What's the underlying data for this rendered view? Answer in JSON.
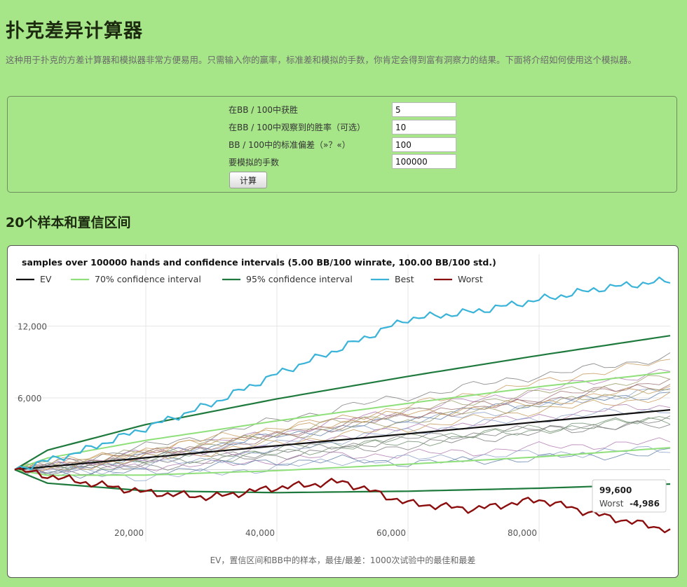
{
  "page": {
    "title": "扑克差异计算器",
    "intro": "这种用于扑克的方差计算器和模拟器非常方便易用。只需输入你的赢率，标准差和模拟的手数，你肯定会得到富有洞察力的结果。下面将介绍如何使用这个模拟器。"
  },
  "form": {
    "fields": [
      {
        "label": "在BB / 100中获胜",
        "value": "5"
      },
      {
        "label": "在BB / 100中观察到的胜率（可选）",
        "value": "10"
      },
      {
        "label": "BB / 100中的标准偏差（»？«）",
        "value": "100"
      },
      {
        "label": "要模拟的手数",
        "value": "100000"
      }
    ],
    "button_label": "计算"
  },
  "section_title": "20个样本和置信区间",
  "colors": {
    "background": "#a6e689",
    "ev": "#111111",
    "ci70": "#8fe07a",
    "ci95": "#1e7a3c",
    "best": "#3ab3d9",
    "worst": "#8b0d0d"
  },
  "chart_data": {
    "type": "line",
    "title": "samples over 100000 hands and confidence intervals (5.00 BB/100 winrate, 100.00 BB/100 std.)",
    "xlabel": "EV，置信区间和BB中的样本，最佳/最差：1000次试验中的最佳和最差",
    "ylabel": "",
    "xlim": [
      0,
      100000
    ],
    "ylim": [
      -6000,
      18000
    ],
    "xticks": [
      "20,000",
      "40,000",
      "60,000",
      "80,000"
    ],
    "xtick_values": [
      20000,
      40000,
      60000,
      80000
    ],
    "yticks": [
      "6,000",
      "12,000"
    ],
    "ytick_values": [
      6000,
      12000
    ],
    "grid": true,
    "legend_position": "top-left",
    "legend": [
      "EV",
      "70% confidence interval",
      "95% confidence interval",
      "Best",
      "Worst"
    ],
    "tooltip": {
      "x_label": "99,600",
      "series": "Worst",
      "value": "-4,986"
    },
    "series": [
      {
        "name": "EV",
        "x": [
          0,
          20000,
          40000,
          60000,
          80000,
          100000
        ],
        "values": [
          0,
          1000,
          2000,
          3000,
          4000,
          5000
        ]
      },
      {
        "name": "70% confidence interval",
        "role": "upper",
        "x": [
          0,
          5000,
          20000,
          40000,
          60000,
          80000,
          100000
        ],
        "values": [
          0,
          970,
          2450,
          4080,
          5540,
          6930,
          8160
        ]
      },
      {
        "name": "70% confidence interval",
        "role": "lower",
        "x": [
          0,
          5000,
          20000,
          40000,
          60000,
          80000,
          100000
        ],
        "values": [
          0,
          -470,
          -450,
          -80,
          460,
          1070,
          1840
        ]
      },
      {
        "name": "95% confidence interval",
        "role": "upper",
        "x": [
          0,
          5000,
          20000,
          40000,
          60000,
          80000,
          100000
        ],
        "values": [
          0,
          1630,
          3770,
          5920,
          7800,
          9550,
          11200
        ]
      },
      {
        "name": "95% confidence interval",
        "role": "lower",
        "x": [
          0,
          5000,
          20000,
          40000,
          60000,
          80000,
          100000
        ],
        "values": [
          0,
          -1130,
          -1770,
          -1920,
          -1800,
          -1550,
          -1200
        ]
      },
      {
        "name": "Best",
        "x": [
          0,
          10000,
          20000,
          30000,
          40000,
          50000,
          60000,
          70000,
          80000,
          90000,
          100000
        ],
        "values": [
          0,
          1500,
          3500,
          5500,
          8000,
          10200,
          12600,
          13200,
          14200,
          15200,
          15800
        ]
      },
      {
        "name": "Worst",
        "x": [
          0,
          10000,
          20000,
          30000,
          40000,
          50000,
          60000,
          70000,
          80000,
          90000,
          99600,
          100000
        ],
        "values": [
          0,
          -1000,
          -1900,
          -2300,
          -1500,
          -1000,
          -2800,
          -3300,
          -2500,
          -3900,
          -4986,
          -5100
        ]
      }
    ],
    "samples": [
      [
        0,
        900,
        1900,
        2900,
        4100,
        5200,
        6100,
        7000,
        7900,
        8600,
        9500
      ],
      [
        0,
        500,
        1400,
        2300,
        3000,
        4100,
        5000,
        5800,
        6600,
        7500,
        8200
      ],
      [
        0,
        200,
        900,
        1700,
        2400,
        3300,
        4000,
        4600,
        5400,
        6100,
        6700
      ],
      [
        0,
        700,
        1600,
        2600,
        3400,
        4300,
        5300,
        6400,
        7200,
        8300,
        9000
      ],
      [
        0,
        300,
        1000,
        1300,
        1700,
        2200,
        2600,
        3100,
        3400,
        3800,
        4200
      ],
      [
        0,
        600,
        1200,
        1800,
        2700,
        3700,
        4500,
        5000,
        5800,
        6500,
        7200
      ],
      [
        0,
        400,
        1100,
        2000,
        2800,
        3500,
        4200,
        5000,
        5600,
        5900,
        6400
      ],
      [
        0,
        800,
        1500,
        2100,
        2800,
        3400,
        4100,
        4800,
        5400,
        6100,
        6800
      ],
      [
        0,
        -200,
        200,
        700,
        1200,
        1600,
        2000,
        2500,
        3200,
        3700,
        4100
      ],
      [
        0,
        100,
        300,
        400,
        800,
        1200,
        1300,
        1500,
        1900,
        2100,
        2300
      ],
      [
        0,
        -400,
        -600,
        -300,
        200,
        700,
        900,
        1100,
        1300,
        1500,
        1700
      ],
      [
        0,
        900,
        1600,
        2400,
        3300,
        4000,
        4700,
        5100,
        5600,
        6200,
        6900
      ],
      [
        0,
        200,
        600,
        900,
        1300,
        1900,
        2200,
        2800,
        3300,
        3900,
        4500
      ],
      [
        0,
        600,
        1300,
        2000,
        2900,
        3800,
        4600,
        5300,
        6000,
        6700,
        7500
      ],
      [
        0,
        -300,
        -200,
        300,
        700,
        800,
        600,
        700,
        1000,
        1200,
        1400
      ],
      [
        0,
        400,
        1200,
        2100,
        3100,
        4000,
        4900,
        5700,
        6400,
        7000,
        7700
      ],
      [
        0,
        100,
        700,
        1200,
        1500,
        2000,
        2600,
        3000,
        3400,
        3500,
        3700
      ],
      [
        0,
        500,
        800,
        1400,
        2000,
        2800,
        3400,
        3900,
        4400,
        5000,
        5300
      ],
      [
        0,
        -100,
        300,
        900,
        1600,
        2500,
        3200,
        3700,
        4300,
        4700,
        5100
      ],
      [
        0,
        300,
        900,
        1500,
        2200,
        2900,
        3500,
        4200,
        5000,
        5500,
        6200
      ]
    ],
    "sample_x": [
      0,
      10000,
      20000,
      30000,
      40000,
      50000,
      60000,
      70000,
      80000,
      90000,
      100000
    ]
  }
}
